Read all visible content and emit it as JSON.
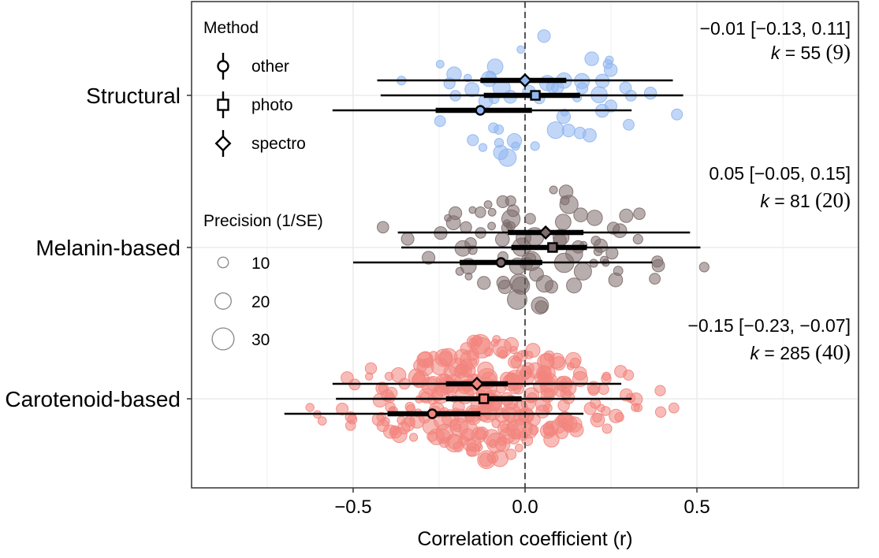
{
  "chart_data": {
    "type": "scatter",
    "subtype": "orchard-forest",
    "xlabel": "Correlation coefficient (r)",
    "xlim": [
      -0.97,
      0.97
    ],
    "xticks": [
      -0.5,
      0.0,
      0.5
    ],
    "xtick_labels": [
      "−0.5",
      "0.0",
      "0.5"
    ],
    "grid": true,
    "reference_line_x": 0.0,
    "categories": [
      "Structural",
      "Melanin-based",
      "Carotenoid-based"
    ],
    "colors": {
      "Structural": "#8fb6f0",
      "Melanin-based": "#7d6b6b",
      "Carotenoid-based": "#f2857e",
      "estimate": "#000000",
      "reference_line": "#555555",
      "grid": "#ebebeb"
    },
    "legend_method": {
      "title": "Method",
      "placement": "top-left",
      "items": [
        {
          "label": "other",
          "shape": "circle"
        },
        {
          "label": "photo",
          "shape": "square"
        },
        {
          "label": "spectro",
          "shape": "diamond"
        }
      ]
    },
    "legend_size": {
      "title": "Precision (1/SE)",
      "placement": "left",
      "items": [
        {
          "label": "10",
          "value": 10
        },
        {
          "label": "20",
          "value": 20
        },
        {
          "label": "30",
          "value": 30
        }
      ]
    },
    "groups": [
      {
        "name": "Structural",
        "summary": {
          "estimate_ci": "−0.01 [−0.13, 0.11]",
          "k_label": "k",
          "k_eq": " = 55 ",
          "k_paren": "(9)"
        },
        "overall": {
          "est": -0.01,
          "ci_low": -0.13,
          "ci_high": 0.11
        },
        "methods": [
          {
            "method": "spectro",
            "est": 0.0,
            "ci": [
              -0.13,
              0.12
            ],
            "pi": [
              -0.43,
              0.43
            ]
          },
          {
            "method": "photo",
            "est": 0.03,
            "ci": [
              -0.12,
              0.16
            ],
            "pi": [
              -0.42,
              0.46
            ]
          },
          {
            "method": "other",
            "est": -0.13,
            "ci": [
              -0.26,
              0.02
            ],
            "pi": [
              -0.56,
              0.31
            ]
          }
        ],
        "n_points": 55
      },
      {
        "name": "Melanin-based",
        "summary": {
          "estimate_ci": "0.05 [−0.05, 0.15]",
          "k_label": "k",
          "k_eq": " = 81 ",
          "k_paren": "(20)"
        },
        "overall": {
          "est": 0.05,
          "ci_low": -0.05,
          "ci_high": 0.15
        },
        "methods": [
          {
            "method": "spectro",
            "est": 0.06,
            "ci": [
              -0.05,
              0.17
            ],
            "pi": [
              -0.37,
              0.48
            ]
          },
          {
            "method": "photo",
            "est": 0.08,
            "ci": [
              -0.04,
              0.18
            ],
            "pi": [
              -0.36,
              0.51
            ]
          },
          {
            "method": "other",
            "est": -0.07,
            "ci": [
              -0.19,
              0.05
            ],
            "pi": [
              -0.5,
              0.37
            ]
          }
        ],
        "n_points": 81
      },
      {
        "name": "Carotenoid-based",
        "summary": {
          "estimate_ci": "−0.15 [−0.23, −0.07]",
          "k_label": "k",
          "k_eq": " = 285 ",
          "k_paren": "(40)"
        },
        "overall": {
          "est": -0.15,
          "ci_low": -0.23,
          "ci_high": -0.07
        },
        "methods": [
          {
            "method": "spectro",
            "est": -0.14,
            "ci": [
              -0.23,
              -0.05
            ],
            "pi": [
              -0.56,
              0.28
            ]
          },
          {
            "method": "photo",
            "est": -0.12,
            "ci": [
              -0.23,
              -0.01
            ],
            "pi": [
              -0.55,
              0.31
            ]
          },
          {
            "method": "other",
            "est": -0.27,
            "ci": [
              -0.4,
              -0.13
            ],
            "pi": [
              -0.7,
              0.17
            ]
          }
        ],
        "n_points": 285
      }
    ]
  }
}
